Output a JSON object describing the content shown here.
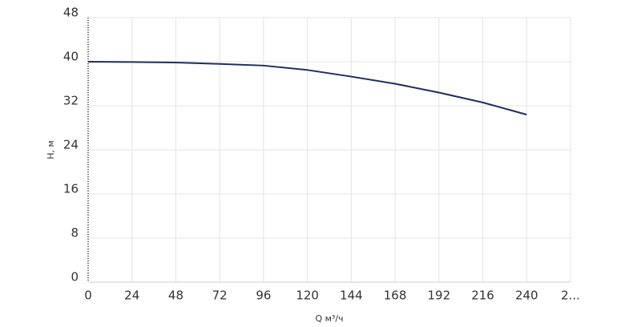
{
  "chart_data": {
    "type": "line",
    "x_label": "Q м³/ч",
    "y_label": "H, м",
    "x": [
      0,
      24,
      48,
      72,
      96,
      120,
      144,
      168,
      192,
      216,
      240
    ],
    "values": [
      40,
      39.95,
      39.85,
      39.6,
      39.3,
      38.5,
      37.3,
      36,
      34.4,
      32.6,
      30.4
    ],
    "color": "#1f2d5c",
    "xlim": [
      0,
      264
    ],
    "xticks": [
      0,
      24,
      48,
      72,
      96,
      120,
      144,
      168,
      192,
      216,
      240,
      {
        "value": 264,
        "label": "2..."
      }
    ],
    "ylim": [
      0,
      48
    ],
    "yticks": [
      0,
      8,
      16,
      24,
      32,
      40,
      48
    ],
    "grid": true
  }
}
